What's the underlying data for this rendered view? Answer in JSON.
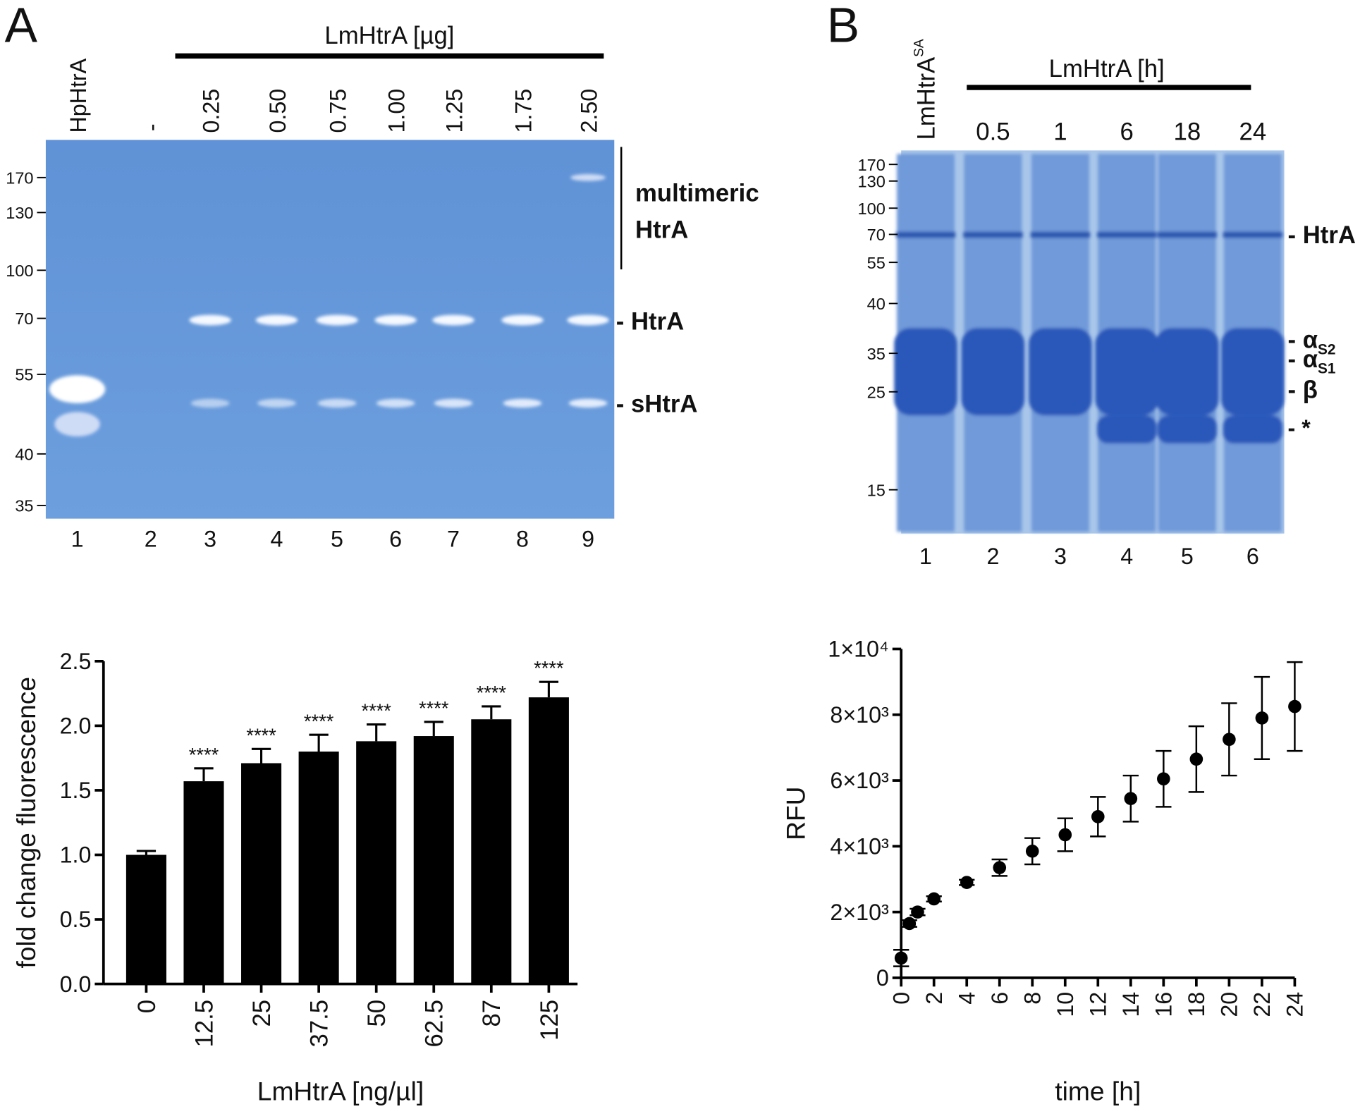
{
  "panel_labels": [
    "A",
    "B"
  ],
  "gels": [
    {
      "header": "LmHtrA [µg]",
      "lanes": [
        "HpHtrA",
        "-",
        "0.25",
        "0.50",
        "0.75",
        "1.00",
        "1.25",
        "1.75",
        "2.50"
      ],
      "lane_numbers": [
        "1",
        "2",
        "3",
        "4",
        "5",
        "6",
        "7",
        "8",
        "9"
      ],
      "markers": [
        "170",
        "130",
        "100",
        "70",
        "55",
        "40",
        "35"
      ],
      "band_labels": [
        {
          "text": "multimeric"
        },
        {
          "text": "HtrA"
        },
        {
          "text": "HtrA",
          "prefix": "-"
        },
        {
          "text": "sHtrA",
          "prefix": "-"
        }
      ]
    },
    {
      "header": "LmHtrA [h]",
      "lanes": [
        {
          "text": "LmHtrA",
          "sup": "SA"
        },
        "0.5",
        "1",
        "6",
        "18",
        "24"
      ],
      "lane_numbers": [
        "1",
        "2",
        "3",
        "4",
        "5",
        "6"
      ],
      "markers": [
        "170",
        "130",
        "100",
        "70",
        "55",
        "40",
        "35",
        "25",
        "15"
      ],
      "band_labels": [
        {
          "text": "HtrA",
          "prefix": "-"
        },
        {
          "text": "α",
          "sub": "S2",
          "prefix": "-"
        },
        {
          "text": "α",
          "sub": "S1",
          "prefix": "-"
        },
        {
          "text": "β",
          "prefix": "-"
        },
        {
          "text": "*",
          "prefix": "-"
        }
      ]
    }
  ],
  "chart_data": [
    {
      "type": "bar",
      "x_label": "LmHtrA [ng/µl]",
      "y_label": "fold change fluorescence",
      "categories": [
        "0",
        "12.5",
        "25",
        "37.5",
        "50",
        "62.5",
        "87",
        "125"
      ],
      "values": [
        1.0,
        1.57,
        1.71,
        1.8,
        1.88,
        1.92,
        2.05,
        2.22
      ],
      "errors": [
        0.03,
        0.1,
        0.11,
        0.13,
        0.13,
        0.11,
        0.1,
        0.12
      ],
      "annotations": [
        null,
        "****",
        "****",
        "****",
        "****",
        "****",
        "****",
        "****"
      ],
      "color": "#000000",
      "ylim": [
        0,
        2.5
      ],
      "yticks": [
        {
          "value": 0,
          "label": "0.0"
        },
        0.5,
        {
          "value": 1,
          "label": "1.0"
        },
        1.5,
        {
          "value": 2,
          "label": "2.0"
        },
        2.5
      ]
    },
    {
      "type": "scatter",
      "x_label": "time [h]",
      "y_label": "RFU",
      "x": [
        0,
        0.5,
        1,
        2,
        4,
        6,
        8,
        10,
        12,
        14,
        16,
        18,
        20,
        22,
        24
      ],
      "values": [
        600,
        1650,
        2000,
        2400,
        2900,
        3350,
        3850,
        4350,
        4900,
        5450,
        6050,
        6650,
        7250,
        7900,
        8250
      ],
      "errors": [
        250,
        100,
        100,
        80,
        80,
        250,
        400,
        500,
        600,
        700,
        850,
        1000,
        1100,
        1250,
        1350
      ],
      "color": "#000000",
      "xlim": [
        0,
        24
      ],
      "ylim": [
        0,
        10000
      ],
      "xticks": [
        0,
        2,
        4,
        6,
        8,
        10,
        12,
        14,
        16,
        18,
        20,
        22,
        24
      ],
      "yticks": [
        0,
        {
          "value": 2000,
          "label": "2×10³"
        },
        {
          "value": 4000,
          "label": "4×10³"
        },
        {
          "value": 6000,
          "label": "6×10³"
        },
        {
          "value": 8000,
          "label": "8×10³"
        },
        {
          "value": 10000,
          "label": "1×10⁴"
        }
      ]
    }
  ]
}
